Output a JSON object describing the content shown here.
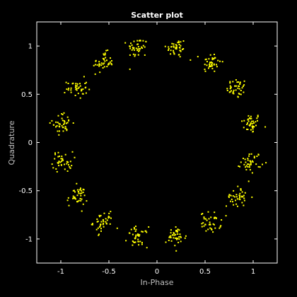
{
  "colors": {
    "background": "#000000",
    "axes": "#ffffff",
    "text": "#ffffff",
    "label": "#bfbfbf",
    "points": "#ffff00"
  },
  "chart_data": {
    "type": "scatter",
    "title": "Scatter plot",
    "xlabel": "In-Phase",
    "ylabel": "Quadrature",
    "xlim": [
      -1.25,
      1.25
    ],
    "ylim": [
      -1.25,
      1.25
    ],
    "xticks": [
      -1,
      -0.5,
      0,
      0.5,
      1
    ],
    "yticks": [
      -1,
      -0.5,
      0,
      0.5,
      1
    ],
    "xtick_labels": [
      "-1",
      "-0.5",
      "0",
      "0.5",
      "1"
    ],
    "ytick_labels": [
      "-1",
      "-0.5",
      "0",
      "0.5",
      "1"
    ],
    "grid": false,
    "legend": "none",
    "cluster_centers": [
      {
        "x": 0.98,
        "y": 0.2
      },
      {
        "x": 0.83,
        "y": 0.56
      },
      {
        "x": 0.56,
        "y": 0.83
      },
      {
        "x": 0.2,
        "y": 0.98
      },
      {
        "x": -0.2,
        "y": 0.98
      },
      {
        "x": -0.56,
        "y": 0.83
      },
      {
        "x": -0.83,
        "y": 0.56
      },
      {
        "x": -0.98,
        "y": 0.2
      },
      {
        "x": -0.98,
        "y": -0.2
      },
      {
        "x": -0.83,
        "y": -0.56
      },
      {
        "x": -0.56,
        "y": -0.83
      },
      {
        "x": -0.2,
        "y": -0.98
      },
      {
        "x": 0.2,
        "y": -0.98
      },
      {
        "x": 0.56,
        "y": -0.83
      },
      {
        "x": 0.83,
        "y": -0.56
      },
      {
        "x": 0.98,
        "y": -0.2
      }
    ],
    "cluster_spread": 0.07,
    "points_per_cluster": 40
  }
}
